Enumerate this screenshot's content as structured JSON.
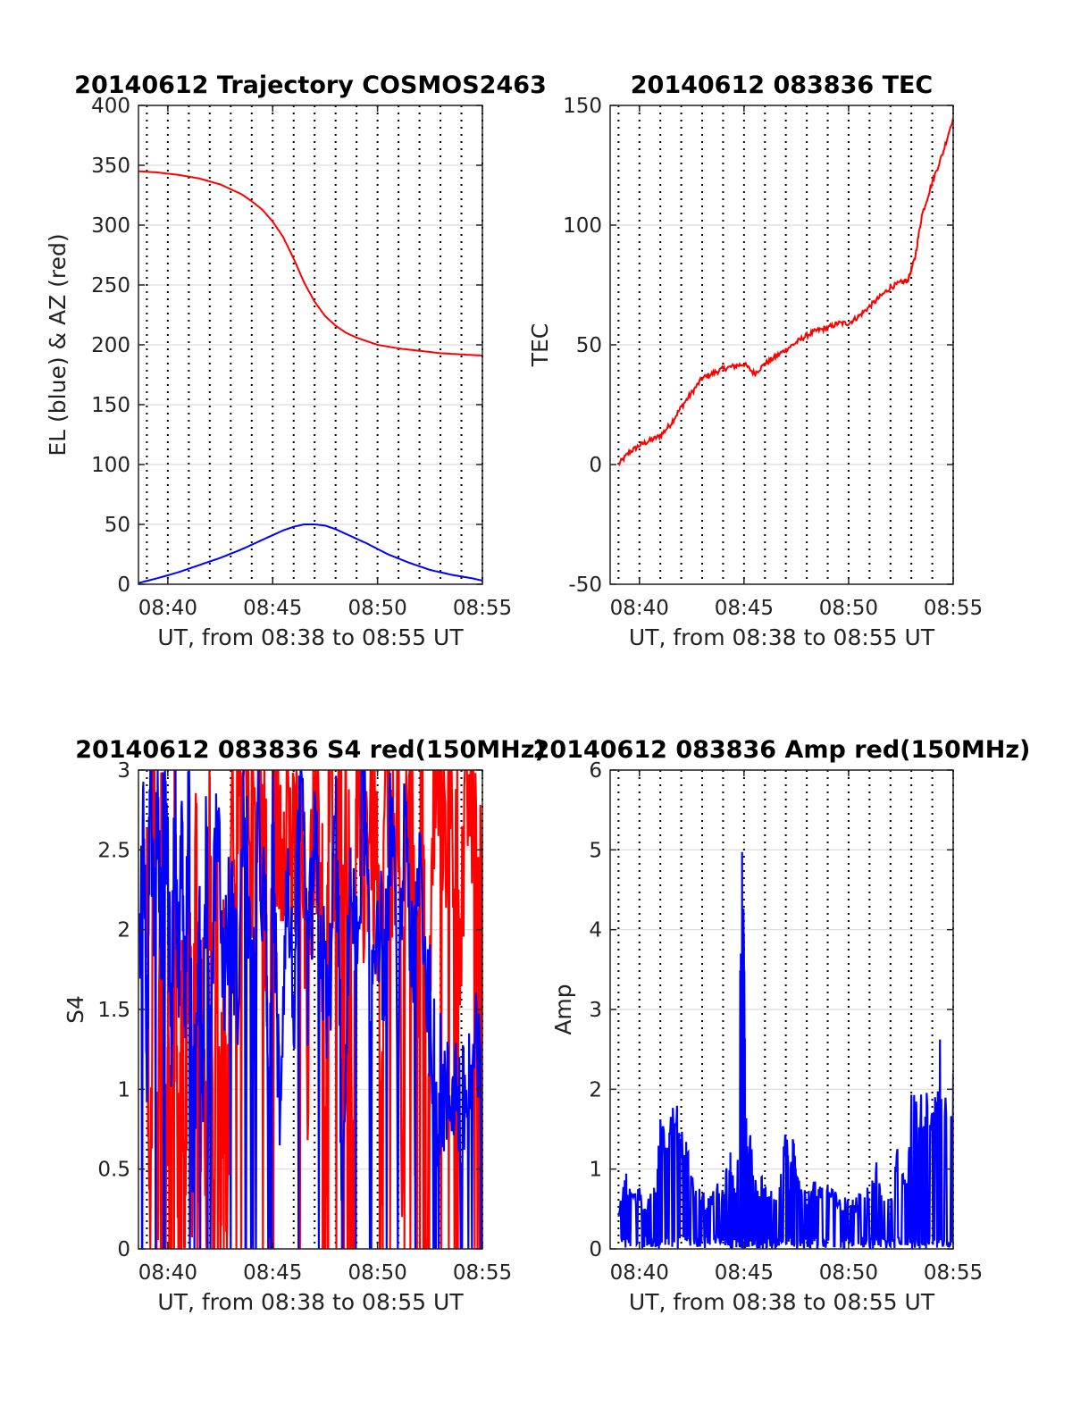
{
  "figure": {
    "background": "#ffffff",
    "colors": {
      "red": "#ff0000",
      "blue": "#0000ff",
      "grid": "#dcdcdc",
      "axis": "#222222",
      "vline": "#000000"
    }
  },
  "chart_data": [
    {
      "id": "trajectory",
      "type": "line",
      "title": "20140612 Trajectory COSMOS2463",
      "xlabel": "UT, from 08:38 to 08:55 UT",
      "ylabel": "EL (blue) & AZ (red)",
      "xlim": [
        "08:38:36",
        "08:55:00"
      ],
      "ylim": [
        0,
        400
      ],
      "yticks": [
        0,
        50,
        100,
        150,
        200,
        250,
        300,
        350,
        400
      ],
      "ytick_labels": [
        "0",
        "50",
        "100",
        "150",
        "200",
        "250",
        "300",
        "350",
        "400"
      ],
      "xticks": [
        "08:40",
        "08:45",
        "08:50",
        "08:55"
      ],
      "grid": true,
      "series": [
        {
          "color": "#ff0000",
          "x": [
            "08:38:36",
            "08:39:30",
            "08:40:30",
            "08:41:30",
            "08:42:30",
            "08:43:30",
            "08:44:00",
            "08:44:30",
            "08:45:00",
            "08:45:30",
            "08:46:00",
            "08:46:30",
            "08:47:00",
            "08:47:30",
            "08:48:00",
            "08:48:30",
            "08:49:00",
            "08:49:30",
            "08:50:00",
            "08:51:00",
            "08:52:00",
            "08:53:00",
            "08:54:00",
            "08:55:00"
          ],
          "y": [
            345,
            344,
            342,
            339,
            334,
            326,
            320,
            313,
            303,
            290,
            272,
            252,
            236,
            224,
            216,
            210,
            206,
            203,
            200,
            197,
            195,
            193,
            192,
            191
          ]
        },
        {
          "color": "#0000ff",
          "x": [
            "08:38:36",
            "08:39:30",
            "08:40:30",
            "08:41:30",
            "08:42:30",
            "08:43:30",
            "08:44:30",
            "08:45:30",
            "08:46:00",
            "08:46:30",
            "08:47:00",
            "08:47:30",
            "08:48:00",
            "08:48:30",
            "08:49:30",
            "08:50:30",
            "08:51:30",
            "08:52:30",
            "08:53:30",
            "08:54:30",
            "08:55:00"
          ],
          "y": [
            1,
            5,
            10,
            16,
            22,
            29,
            37,
            45,
            48,
            50,
            50,
            49,
            46,
            42,
            34,
            25,
            18,
            12,
            8,
            5,
            3
          ]
        }
      ]
    },
    {
      "id": "tec",
      "type": "line",
      "title": "20140612 083836 TEC",
      "xlabel": "UT, from 08:38 to 08:55 UT",
      "ylabel": "TEC",
      "xlim": [
        "08:38:36",
        "08:55:00"
      ],
      "ylim": [
        -50,
        150
      ],
      "yticks": [
        -50,
        0,
        50,
        100,
        150
      ],
      "ytick_labels": [
        "-50",
        "0",
        "50",
        "100",
        "150"
      ],
      "xticks": [
        "08:40",
        "08:45",
        "08:50",
        "08:55"
      ],
      "grid": true,
      "series": [
        {
          "color": "#ff0000",
          "x": [
            "08:39:00",
            "08:39:30",
            "08:40:00",
            "08:40:30",
            "08:41:00",
            "08:41:30",
            "08:42:00",
            "08:42:30",
            "08:43:00",
            "08:43:30",
            "08:44:00",
            "08:44:30",
            "08:45:00",
            "08:45:30",
            "08:46:00",
            "08:46:30",
            "08:47:00",
            "08:47:30",
            "08:48:00",
            "08:48:30",
            "08:49:00",
            "08:49:30",
            "08:50:00",
            "08:50:30",
            "08:51:00",
            "08:51:30",
            "08:52:00",
            "08:52:30",
            "08:52:50",
            "08:53:10",
            "08:53:30",
            "08:54:00",
            "08:54:30",
            "08:55:00"
          ],
          "y": [
            0,
            5,
            8,
            10,
            12,
            17,
            24,
            30,
            36,
            38,
            40,
            41,
            42,
            38,
            42,
            45,
            48,
            51,
            54,
            56,
            57,
            59,
            59,
            62,
            66,
            70,
            74,
            76,
            77,
            86,
            104,
            118,
            130,
            145
          ]
        }
      ]
    },
    {
      "id": "s4",
      "type": "line",
      "title": "20140612 083836 S4 red(150MHz)",
      "xlabel": "UT, from 08:38 to 08:55 UT",
      "ylabel": "S4",
      "xlim": [
        "08:38:36",
        "08:55:00"
      ],
      "ylim": [
        0,
        3
      ],
      "yticks": [
        0,
        0.5,
        1,
        1.5,
        2,
        2.5,
        3
      ],
      "ytick_labels": [
        "0",
        "0.5",
        "1",
        "1.5",
        "2",
        "2.5",
        "3"
      ],
      "xticks": [
        "08:40",
        "08:45",
        "08:50",
        "08:55"
      ],
      "grid": true,
      "series": [
        {
          "color": "#ff0000",
          "x": [
            "08:39:00",
            "08:39:10",
            "08:39:20",
            "08:39:30",
            "08:39:40",
            "08:39:50",
            "08:40:00",
            "08:40:10",
            "08:40:20",
            "08:40:30",
            "08:40:40",
            "08:40:50",
            "08:41:00",
            "08:41:10",
            "08:41:20",
            "08:41:30",
            "08:41:40",
            "08:41:50",
            "08:42:00",
            "08:42:10",
            "08:42:20",
            "08:42:30",
            "08:42:40",
            "08:42:50",
            "08:43:00",
            "08:43:20",
            "08:43:40",
            "08:44:00",
            "08:44:20",
            "08:44:40",
            "08:44:50",
            "08:45:00",
            "08:45:20",
            "08:45:40",
            "08:46:00",
            "08:46:20",
            "08:46:40",
            "08:47:00",
            "08:47:20",
            "08:47:30",
            "08:47:40",
            "08:48:00",
            "08:48:20",
            "08:48:40",
            "08:48:50",
            "08:49:00",
            "08:49:20",
            "08:49:40",
            "08:50:00",
            "08:50:10",
            "08:50:20",
            "08:50:40",
            "08:51:00",
            "08:51:10",
            "08:51:20",
            "08:51:40",
            "08:51:50",
            "08:52:00",
            "08:52:10",
            "08:52:20",
            "08:52:40",
            "08:53:00",
            "08:53:20",
            "08:53:40",
            "08:54:00",
            "08:54:20",
            "08:54:40",
            "08:55:00"
          ],
          "y": [
            2,
            0,
            3,
            0,
            2.5,
            0,
            1.5,
            0,
            2.8,
            0,
            1.2,
            0,
            3,
            0,
            2.6,
            0,
            2.2,
            0,
            3,
            0,
            2.4,
            0,
            1.8,
            0,
            3,
            2.6,
            2.9,
            2.6,
            3,
            2.4,
            0,
            3,
            2.6,
            3,
            2.2,
            2.8,
            1.2,
            3,
            2.5,
            0,
            3,
            2.2,
            3,
            2.6,
            0,
            3,
            2.4,
            2.8,
            2.3,
            0,
            3,
            2.6,
            3,
            0,
            2.8,
            3,
            0,
            2.7,
            3,
            0,
            2.9,
            3,
            2.8,
            2.6,
            2.2,
            3,
            2.7,
            2.3
          ]
        },
        {
          "color": "#0000ff",
          "x": [
            "08:38:40",
            "08:38:50",
            "08:39:00",
            "08:39:10",
            "08:39:20",
            "08:39:30",
            "08:39:40",
            "08:39:50",
            "08:40:00",
            "08:40:10",
            "08:40:20",
            "08:40:30",
            "08:40:40",
            "08:40:50",
            "08:41:00",
            "08:41:10",
            "08:41:20",
            "08:41:30",
            "08:41:40",
            "08:41:50",
            "08:42:00",
            "08:42:20",
            "08:42:40",
            "08:43:00",
            "08:43:20",
            "08:43:40",
            "08:44:00",
            "08:44:20",
            "08:44:40",
            "08:44:50",
            "08:45:00",
            "08:45:10",
            "08:45:20",
            "08:45:40",
            "08:46:00",
            "08:46:20",
            "08:46:40",
            "08:47:00",
            "08:47:20",
            "08:47:40",
            "08:48:00",
            "08:48:10",
            "08:48:20",
            "08:48:40",
            "08:49:00",
            "08:49:20",
            "08:49:40",
            "08:50:00",
            "08:50:20",
            "08:50:40",
            "08:51:00",
            "08:51:20",
            "08:51:40",
            "08:52:00",
            "08:52:20",
            "08:52:40",
            "08:52:50",
            "08:53:00",
            "08:53:20",
            "08:53:40",
            "08:54:00",
            "08:54:20",
            "08:54:40",
            "08:55:00"
          ],
          "y": [
            1.7,
            2.9,
            1.3,
            3,
            2.1,
            2.8,
            1.9,
            3,
            2.4,
            1.2,
            2.9,
            1.7,
            2.6,
            1.5,
            3,
            0.7,
            1.1,
            2.4,
            1.0,
            2.6,
            1.3,
            2.8,
            1.7,
            2.2,
            1.6,
            2.9,
            1.5,
            2.6,
            2.0,
            0.45,
            2.7,
            1.6,
            0.9,
            2.4,
            1.5,
            2.9,
            1.7,
            2.5,
            1.9,
            1.4,
            2.7,
            1.8,
            0,
            2.4,
            1.8,
            2.9,
            1.6,
            2.2,
            1.7,
            2.8,
            1.4,
            2.9,
            1.6,
            2.5,
            1.7,
            1.25,
            0.85,
            1.05,
            0.9,
            1.1,
            0.8,
            1.05,
            1.2,
            0.95
          ]
        }
      ]
    },
    {
      "id": "amp",
      "type": "line",
      "title": "20140612 083836 Amp red(150MHz)",
      "xlabel": "UT, from 08:38 to 08:55 UT",
      "ylabel": "Amp",
      "xlim": [
        "08:38:36",
        "08:55:00"
      ],
      "ylim": [
        0,
        6
      ],
      "yticks": [
        0,
        1,
        2,
        3,
        4,
        5,
        6
      ],
      "ytick_labels": [
        "0",
        "1",
        "2",
        "3",
        "4",
        "5",
        "6"
      ],
      "xticks": [
        "08:40",
        "08:45",
        "08:50",
        "08:55"
      ],
      "grid": true,
      "series": [
        {
          "color": "#0000ff",
          "x": [
            "08:39:00",
            "08:39:20",
            "08:39:40",
            "08:40:00",
            "08:40:20",
            "08:40:40",
            "08:40:50",
            "08:41:00",
            "08:41:20",
            "08:41:40",
            "08:42:00",
            "08:42:20",
            "08:42:40",
            "08:43:00",
            "08:43:20",
            "08:43:40",
            "08:44:00",
            "08:44:20",
            "08:44:30",
            "08:44:40",
            "08:44:50",
            "08:44:55",
            "08:45:00",
            "08:45:05",
            "08:45:10",
            "08:45:20",
            "08:45:30",
            "08:45:40",
            "08:45:50",
            "08:46:00",
            "08:46:20",
            "08:46:40",
            "08:47:00",
            "08:47:10",
            "08:47:20",
            "08:47:30",
            "08:47:40",
            "08:48:00",
            "08:48:20",
            "08:48:40",
            "08:49:00",
            "08:49:20",
            "08:49:40",
            "08:50:00",
            "08:50:20",
            "08:50:40",
            "08:51:00",
            "08:51:20",
            "08:51:40",
            "08:52:00",
            "08:52:20",
            "08:52:40",
            "08:52:50",
            "08:53:00",
            "08:53:20",
            "08:53:40",
            "08:54:00",
            "08:54:20",
            "08:54:40",
            "08:55:00"
          ],
          "y": [
            0.5,
            0.95,
            0.65,
            0.75,
            0.6,
            0.7,
            0.9,
            1.6,
            1.3,
            1.9,
            1.5,
            1.2,
            0.8,
            0.7,
            0.6,
            0.9,
            0.7,
            1.3,
            0.8,
            0.6,
            4.5,
            4.8,
            4.0,
            2.0,
            1.2,
            1.4,
            0.9,
            0.7,
            0.9,
            0.75,
            0.8,
            0.7,
            1.6,
            0.8,
            1.5,
            0.9,
            0.8,
            0.7,
            0.9,
            0.75,
            0.8,
            0.7,
            0.6,
            0.7,
            0.6,
            0.75,
            0.8,
            1.2,
            0.7,
            0.6,
            1.3,
            0.9,
            0.8,
            2.0,
            1.7,
            2.1,
            1.8,
            2.6,
            1.9,
            2.2
          ]
        }
      ]
    }
  ]
}
